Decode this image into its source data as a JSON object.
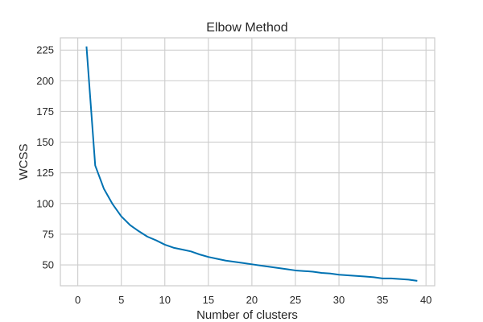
{
  "chart_data": {
    "type": "line",
    "title": "Elbow Method",
    "xlabel": "Number of clusters",
    "ylabel": "WCSS",
    "xlim": [
      -2,
      41
    ],
    "ylim": [
      33,
      235
    ],
    "xticks": [
      0,
      5,
      10,
      15,
      20,
      25,
      30,
      35,
      40
    ],
    "yticks": [
      50,
      75,
      100,
      125,
      150,
      175,
      200,
      225
    ],
    "grid": true,
    "series": [
      {
        "color": "#0072B2",
        "x": [
          1,
          2,
          3,
          4,
          5,
          6,
          7,
          8,
          9,
          10,
          11,
          12,
          13,
          14,
          15,
          16,
          17,
          18,
          19,
          20,
          21,
          22,
          23,
          24,
          25,
          26,
          27,
          28,
          29,
          30,
          31,
          32,
          33,
          34,
          35,
          36,
          37,
          38,
          39
        ],
        "values": [
          228,
          131,
          112,
          99.5,
          89.5,
          82.5,
          77.5,
          73,
          70,
          66.5,
          64,
          62.5,
          61,
          58.5,
          56.5,
          55,
          53.5,
          52.5,
          51.5,
          50.5,
          49.5,
          48.5,
          47.5,
          46.5,
          45.5,
          45,
          44.5,
          43.5,
          43,
          42,
          41.5,
          41,
          40.5,
          40,
          39,
          39,
          38.5,
          38,
          37
        ]
      }
    ]
  }
}
